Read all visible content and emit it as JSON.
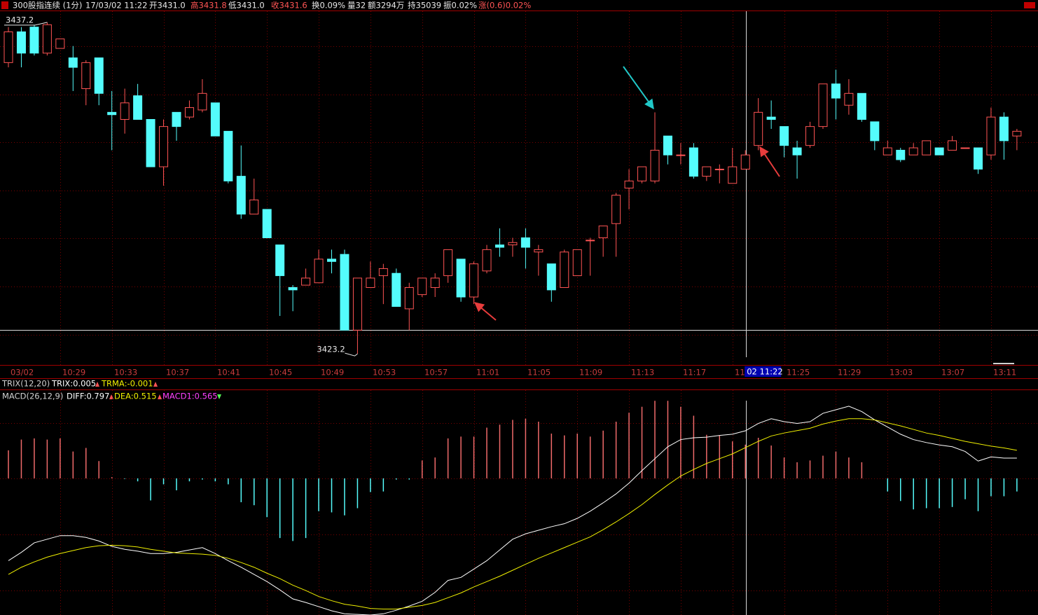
{
  "header": {
    "title": "300股指连续 (1分)",
    "datetime": "17/03/02 11:22",
    "open": "开3431.0",
    "high": "高3431.8",
    "low": "低3431.0",
    "close": "收3431.6",
    "turnover": "换0.09%",
    "volume": "量32",
    "amount": "额3294万",
    "position": "持35039",
    "amplitude": "振0.02%",
    "change": "涨(0.6)0.02%"
  },
  "trix": {
    "title": "TRIX(12,20)",
    "trix": "TRIX:0.005",
    "trma": "TRMA:-0.001"
  },
  "chart_data": [
    {
      "type": "candlestick",
      "categories": [
        "03/02",
        null,
        null,
        null,
        "10:29",
        null,
        null,
        null,
        "10:33",
        null,
        null,
        null,
        "10:37",
        null,
        null,
        null,
        "10:41",
        null,
        null,
        null,
        "10:45",
        null,
        null,
        null,
        "10:49",
        null,
        null,
        null,
        "10:53",
        null,
        null,
        null,
        "10:57",
        null,
        null,
        null,
        "11:01",
        null,
        null,
        null,
        "11:05",
        null,
        null,
        null,
        "11:09",
        null,
        null,
        null,
        "11:13",
        null,
        null,
        null,
        "11:17",
        null,
        null,
        null,
        "11:",
        null,
        null,
        null,
        "11:25",
        null,
        null,
        null,
        "11:29",
        null,
        null,
        null,
        "13:03",
        null,
        null,
        null,
        "13:07",
        null,
        null,
        null,
        "13:11",
        null,
        null
      ],
      "crosshair_label": "02 11:22",
      "open": [
        3435.5,
        3436.8,
        3437.0,
        3435.9,
        3436.1,
        3435.7,
        3434.4,
        3435.7,
        3433.4,
        3433.1,
        3434.1,
        3433.1,
        3431.1,
        3433.4,
        3433.2,
        3433.5,
        3433.8,
        3432.6,
        3430.7,
        3429.1,
        3429.3,
        3427.8,
        3426.0,
        3426.1,
        3426.2,
        3427.2,
        3427.4,
        3424.2,
        3426.0,
        3426.5,
        3426.6,
        3425.1,
        3425.7,
        3426.0,
        3426.5,
        3427.2,
        3425.6,
        3426.7,
        3427.8,
        3427.8,
        3428.1,
        3427.5,
        3427.0,
        3426.0,
        3426.5,
        3428.0,
        3428.1,
        3428.7,
        3430.2,
        3430.5,
        3430.5,
        3432.4,
        3431.6,
        3431.9,
        3430.7,
        3431.0,
        3430.4,
        3431.0,
        3432.0,
        3433.2,
        3432.8,
        3431.9,
        3432.0,
        3432.8,
        3434.6,
        3433.7,
        3434.2,
        3433.0,
        3431.6,
        3431.8,
        3431.6,
        3431.6,
        3431.9,
        3431.8,
        3431.9,
        3431.9,
        3431.6,
        3433.2,
        3432.4
      ],
      "high": [
        3437.0,
        3437.0,
        3437.1,
        3437.2,
        3436.5,
        3436.2,
        3435.6,
        3435.7,
        3434.3,
        3434.4,
        3434.6,
        3433.1,
        3433.1,
        3433.4,
        3433.9,
        3434.8,
        3433.8,
        3432.6,
        3432.0,
        3430.6,
        3429.3,
        3427.8,
        3426.1,
        3426.8,
        3427.6,
        3427.6,
        3427.6,
        3426.4,
        3427.1,
        3427.0,
        3426.8,
        3426.2,
        3426.4,
        3426.6,
        3427.6,
        3427.2,
        3427.1,
        3427.8,
        3428.5,
        3428.1,
        3428.5,
        3427.8,
        3427.0,
        3427.6,
        3427.6,
        3428.1,
        3428.6,
        3430.0,
        3431.0,
        3431.1,
        3433.4,
        3432.4,
        3432.1,
        3432.1,
        3431.1,
        3431.2,
        3431.9,
        3431.8,
        3434.0,
        3433.9,
        3432.8,
        3432.2,
        3433.0,
        3434.6,
        3435.2,
        3434.8,
        3434.2,
        3433.0,
        3432.2,
        3431.9,
        3432.1,
        3432.2,
        3431.9,
        3432.4,
        3431.9,
        3431.9,
        3433.6,
        3433.4,
        3432.7
      ],
      "low": [
        3435.3,
        3435.3,
        3435.8,
        3435.8,
        3436.1,
        3434.3,
        3433.7,
        3433.7,
        3431.8,
        3432.5,
        3433.1,
        3431.1,
        3430.3,
        3432.2,
        3433.1,
        3433.4,
        3432.4,
        3430.4,
        3428.9,
        3429.1,
        3428.1,
        3424.8,
        3425.0,
        3426.1,
        3426.2,
        3426.6,
        3424.2,
        3423.2,
        3426.0,
        3425.3,
        3425.2,
        3424.2,
        3425.6,
        3425.6,
        3426.2,
        3425.4,
        3425.3,
        3426.6,
        3427.3,
        3427.3,
        3426.8,
        3426.5,
        3425.4,
        3426.0,
        3426.5,
        3426.5,
        3427.3,
        3427.3,
        3429.3,
        3430.4,
        3430.4,
        3431.2,
        3431.2,
        3430.6,
        3430.5,
        3430.4,
        3430.4,
        3431.0,
        3431.8,
        3432.7,
        3431.5,
        3430.6,
        3431.9,
        3432.7,
        3433.1,
        3433.3,
        3433.0,
        3431.8,
        3431.6,
        3431.3,
        3431.6,
        3431.6,
        3431.6,
        3431.8,
        3431.9,
        3430.8,
        3431.4,
        3431.4,
        3431.8
      ],
      "close": [
        3436.8,
        3435.9,
        3435.9,
        3437.1,
        3436.5,
        3435.3,
        3435.5,
        3434.2,
        3433.3,
        3433.8,
        3433.1,
        3431.1,
        3432.8,
        3432.8,
        3433.6,
        3434.2,
        3432.4,
        3430.5,
        3429.1,
        3429.7,
        3428.1,
        3426.5,
        3425.9,
        3426.4,
        3427.2,
        3427.1,
        3424.2,
        3426.4,
        3426.4,
        3426.8,
        3425.2,
        3426.0,
        3426.4,
        3426.4,
        3427.6,
        3425.6,
        3427.0,
        3427.6,
        3427.7,
        3427.9,
        3427.7,
        3427.6,
        3425.9,
        3427.5,
        3427.6,
        3428.0,
        3428.6,
        3429.9,
        3430.5,
        3431.1,
        3431.8,
        3431.6,
        3431.6,
        3430.7,
        3431.1,
        3431.0,
        3431.1,
        3431.6,
        3433.4,
        3433.1,
        3432.0,
        3431.6,
        3432.8,
        3434.6,
        3434.0,
        3434.2,
        3433.1,
        3432.2,
        3431.9,
        3431.4,
        3431.9,
        3432.2,
        3431.6,
        3432.2,
        3431.9,
        3431.0,
        3433.2,
        3432.2,
        3432.6
      ],
      "up_color": "#ff5454",
      "down_color": "#54fcfc",
      "ylim": [
        3422.76,
        3437.7
      ]
    },
    {
      "type": "macd",
      "title": "MACD(26,12,9)",
      "histogram": {
        "name": "MACD1:0.565",
        "up_color": "#f06a6a",
        "down_color": "#54fcfc",
        "values": [
          0.47,
          0.65,
          0.67,
          0.65,
          0.67,
          0.45,
          0.51,
          0.29,
          0.02,
          -0.01,
          -0.05,
          -0.37,
          -0.1,
          -0.2,
          -0.05,
          -0.02,
          -0.05,
          -0.1,
          -0.4,
          -0.45,
          -0.65,
          -1.0,
          -1.05,
          -1.0,
          -0.55,
          -0.57,
          -0.62,
          -0.5,
          -0.23,
          -0.22,
          -0.02,
          -0.02,
          0.3,
          0.35,
          0.67,
          0.7,
          0.7,
          0.85,
          0.9,
          0.98,
          1.0,
          0.95,
          0.75,
          0.72,
          0.75,
          0.7,
          0.8,
          0.95,
          1.1,
          1.2,
          1.3,
          1.3,
          1.2,
          1.05,
          0.73,
          0.72,
          0.62,
          0.565,
          0.68,
          0.55,
          0.35,
          0.27,
          0.3,
          0.38,
          0.45,
          0.35,
          0.27,
          0.0,
          -0.22,
          -0.38,
          -0.52,
          -0.5,
          -0.5,
          -0.48,
          -0.35,
          -0.55,
          -0.3,
          -0.3,
          -0.22
        ]
      },
      "series": [
        {
          "name": "DIFF:0.797",
          "color": "#ffffff",
          "values": [
            -1.38,
            -1.24,
            -1.08,
            -1.02,
            -0.96,
            -0.96,
            -0.99,
            -1.05,
            -1.14,
            -1.19,
            -1.22,
            -1.26,
            -1.26,
            -1.24,
            -1.2,
            -1.16,
            -1.26,
            -1.38,
            -1.49,
            -1.61,
            -1.73,
            -1.87,
            -2.02,
            -2.08,
            -2.15,
            -2.22,
            -2.27,
            -2.28,
            -2.29,
            -2.27,
            -2.21,
            -2.14,
            -2.06,
            -1.91,
            -1.71,
            -1.66,
            -1.52,
            -1.38,
            -1.2,
            -1.02,
            -0.93,
            -0.87,
            -0.81,
            -0.76,
            -0.67,
            -0.55,
            -0.41,
            -0.26,
            -0.08,
            0.13,
            0.33,
            0.53,
            0.65,
            0.68,
            0.69,
            0.72,
            0.74,
            0.797,
            0.92,
            1.0,
            0.95,
            0.92,
            0.95,
            1.09,
            1.15,
            1.21,
            1.12,
            0.98,
            0.86,
            0.74,
            0.65,
            0.6,
            0.56,
            0.53,
            0.45,
            0.29,
            0.36,
            0.34,
            0.34
          ]
        },
        {
          "name": "DEA:0.515",
          "color": "#f0f000",
          "values": [
            -1.61,
            -1.49,
            -1.4,
            -1.32,
            -1.26,
            -1.21,
            -1.16,
            -1.13,
            -1.12,
            -1.13,
            -1.15,
            -1.19,
            -1.22,
            -1.25,
            -1.26,
            -1.27,
            -1.29,
            -1.34,
            -1.41,
            -1.49,
            -1.59,
            -1.68,
            -1.79,
            -1.88,
            -1.98,
            -2.05,
            -2.11,
            -2.14,
            -2.18,
            -2.19,
            -2.19,
            -2.16,
            -2.13,
            -2.08,
            -2.0,
            -1.92,
            -1.82,
            -1.73,
            -1.64,
            -1.54,
            -1.44,
            -1.34,
            -1.25,
            -1.16,
            -1.07,
            -0.98,
            -0.86,
            -0.73,
            -0.59,
            -0.44,
            -0.27,
            -0.11,
            0.04,
            0.15,
            0.25,
            0.33,
            0.41,
            0.515,
            0.62,
            0.71,
            0.76,
            0.8,
            0.84,
            0.91,
            0.96,
            1.0,
            1.0,
            0.98,
            0.93,
            0.88,
            0.82,
            0.76,
            0.72,
            0.67,
            0.62,
            0.58,
            0.54,
            0.51,
            0.47
          ]
        }
      ],
      "ylim": [
        -2.29,
        1.49
      ]
    }
  ]
}
